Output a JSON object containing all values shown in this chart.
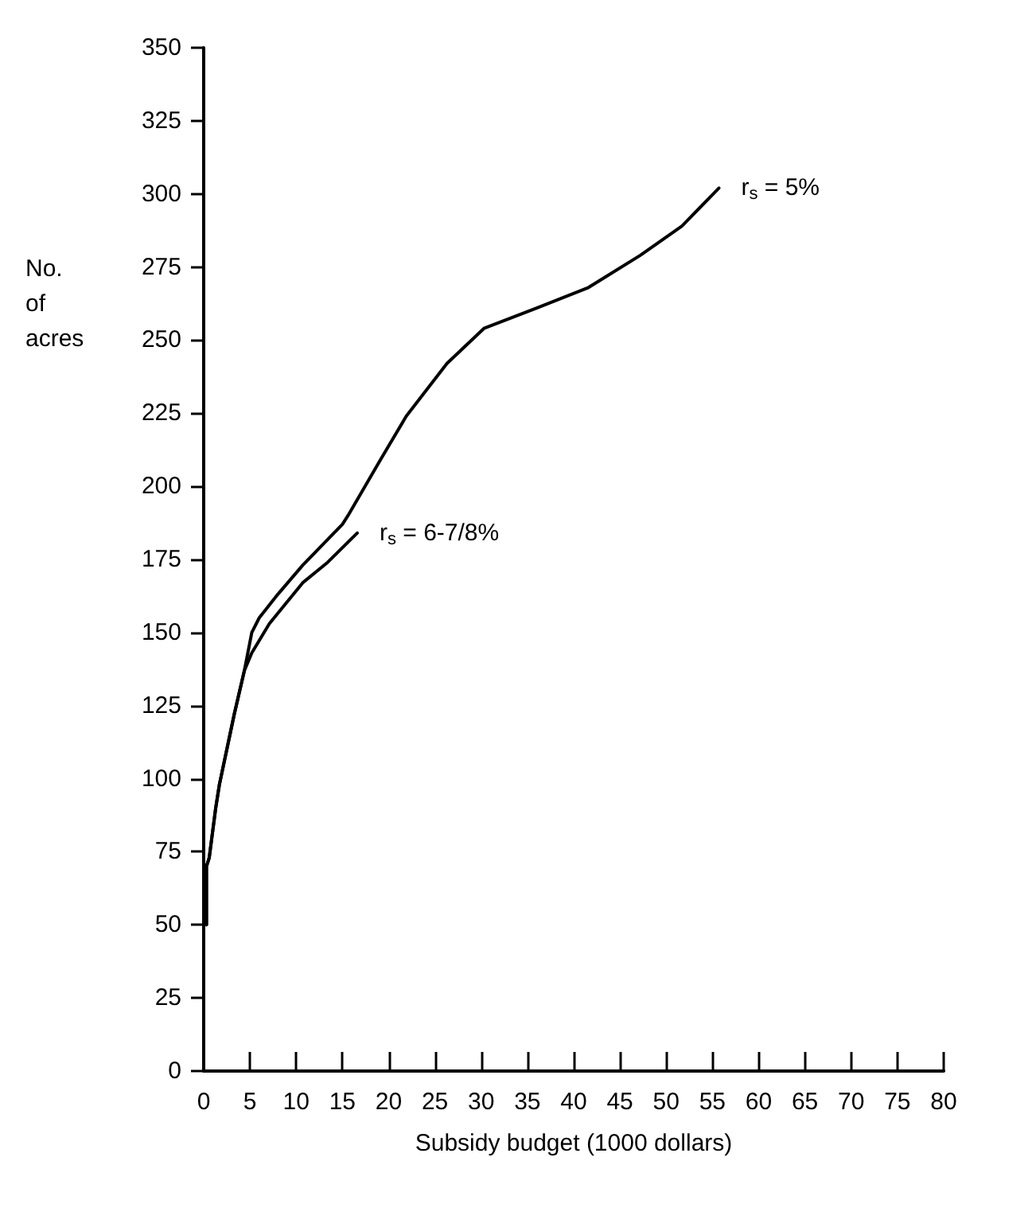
{
  "chart_data": {
    "type": "line",
    "xlabel": "Subsidy budget (1000 dollars)",
    "ylabel": "No.\nof\nacres",
    "xlim": [
      0,
      80
    ],
    "xticks": [
      0,
      5,
      10,
      15,
      20,
      25,
      30,
      35,
      40,
      45,
      50,
      55,
      60,
      65,
      70,
      75,
      80
    ],
    "ylim": [
      0,
      350
    ],
    "yticks": [
      0,
      25,
      50,
      75,
      100,
      125,
      150,
      175,
      200,
      225,
      250,
      275,
      300,
      325,
      350
    ],
    "grid": false,
    "legend": false,
    "marker": "none",
    "line_style": "solid",
    "series": [
      {
        "name": "r$_{s}$ = 5%",
        "color": "#000000",
        "x": [
          0.3,
          0.3,
          0.6,
          1.3,
          1.7,
          3.3,
          4.4,
          5.2,
          6.0,
          8.0,
          10.7,
          15.0,
          15.6,
          19.1,
          21.9,
          26.3,
          30.3,
          36,
          41.6,
          47.2,
          51.7,
          55.7
        ],
        "values": [
          50,
          70,
          73,
          90,
          98,
          122,
          137,
          150,
          155,
          163,
          173,
          187,
          190,
          209,
          224,
          242,
          254,
          261,
          268,
          279,
          289,
          302
        ]
      },
      {
        "name": "r$_{s}$ = 6-7/8%",
        "color": "#000000",
        "x": [
          0.3,
          0.3,
          0.6,
          1.3,
          1.7,
          3.3,
          4.4,
          5.2,
          7.1,
          10.7,
          13.4,
          16.6
        ],
        "values": [
          50,
          70,
          73,
          90,
          98,
          122,
          137,
          143,
          153,
          167,
          174,
          184
        ]
      }
    ]
  }
}
